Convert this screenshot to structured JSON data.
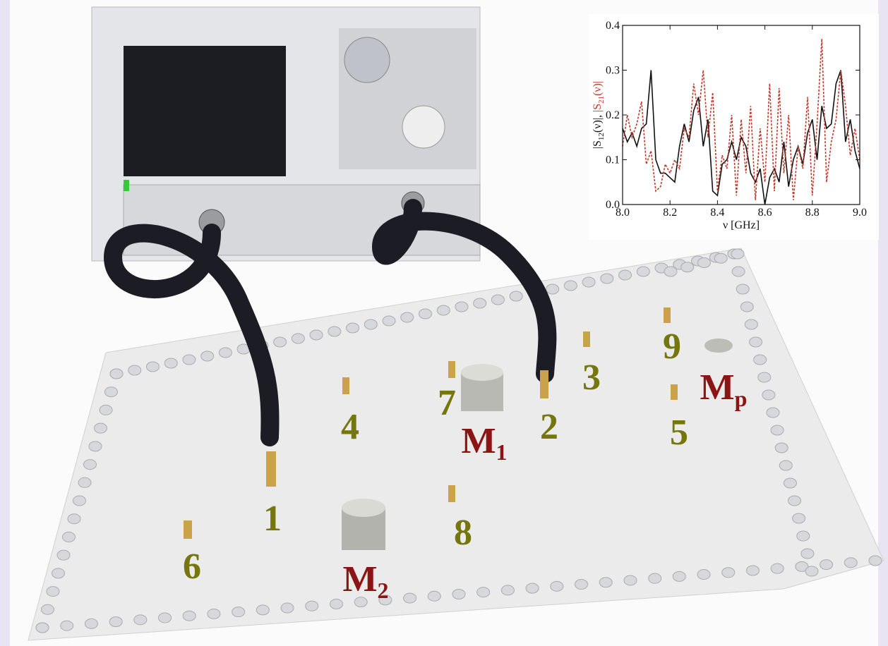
{
  "labels": [
    {
      "text": "1"
    },
    {
      "text": "2"
    },
    {
      "text": "3"
    },
    {
      "text": "4"
    },
    {
      "text": "5"
    },
    {
      "text": "6"
    },
    {
      "text": "7"
    },
    {
      "text": "8"
    },
    {
      "text": "9"
    },
    {
      "text": "M",
      "sub": "1"
    },
    {
      "text": "M",
      "sub": "2"
    },
    {
      "text": "M",
      "sub": "p"
    }
  ],
  "chart_data": {
    "type": "line",
    "xlabel": "ν [GHz]",
    "ylabel_parts": [
      "|S",
      "12",
      "(ν)|, ",
      "|S",
      "21",
      "(ν)|"
    ],
    "x": [
      8.0,
      8.02,
      8.04,
      8.06,
      8.08,
      8.1,
      8.12,
      8.14,
      8.16,
      8.18,
      8.2,
      8.22,
      8.24,
      8.26,
      8.28,
      8.3,
      8.32,
      8.34,
      8.36,
      8.38,
      8.4,
      8.42,
      8.44,
      8.46,
      8.48,
      8.5,
      8.52,
      8.54,
      8.56,
      8.58,
      8.6,
      8.62,
      8.64,
      8.66,
      8.68,
      8.7,
      8.72,
      8.74,
      8.76,
      8.78,
      8.8,
      8.82,
      8.84,
      8.86,
      8.88,
      8.9,
      8.92,
      8.94,
      8.96,
      8.98,
      9.0
    ],
    "series": [
      {
        "color": "#111111",
        "dash": false,
        "values": [
          0.17,
          0.14,
          0.16,
          0.13,
          0.17,
          0.18,
          0.3,
          0.1,
          0.07,
          0.07,
          0.06,
          0.05,
          0.13,
          0.18,
          0.14,
          0.21,
          0.24,
          0.13,
          0.19,
          0.03,
          0.02,
          0.09,
          0.1,
          0.14,
          0.1,
          0.15,
          0.13,
          0.07,
          0.05,
          0.08,
          0.0,
          0.06,
          0.08,
          0.05,
          0.14,
          0.04,
          0.1,
          0.13,
          0.09,
          0.16,
          0.19,
          0.1,
          0.22,
          0.17,
          0.18,
          0.27,
          0.3,
          0.14,
          0.19,
          0.12,
          0.08
        ]
      },
      {
        "color": "#c0392b",
        "dash": true,
        "values": [
          0.13,
          0.2,
          0.15,
          0.18,
          0.23,
          0.09,
          0.12,
          0.03,
          0.04,
          0.09,
          0.07,
          0.1,
          0.08,
          0.17,
          0.15,
          0.27,
          0.2,
          0.3,
          0.15,
          0.25,
          0.03,
          0.11,
          0.08,
          0.2,
          0.02,
          0.19,
          0.07,
          0.22,
          0.01,
          0.17,
          0.05,
          0.27,
          0.03,
          0.26,
          0.07,
          0.2,
          0.01,
          0.13,
          0.08,
          0.24,
          0.02,
          0.18,
          0.37,
          0.05,
          0.14,
          0.19,
          0.3,
          0.22,
          0.11,
          0.17,
          0.1
        ]
      }
    ],
    "xlim": [
      8.0,
      9.0
    ],
    "xticks": [
      {
        "value": 8,
        "label": "8.0"
      },
      8.2,
      8.4,
      8.6,
      8.8,
      {
        "value": 9,
        "label": "9.0"
      }
    ],
    "ylim": [
      0,
      0.4
    ],
    "yticks": [
      {
        "value": 0,
        "label": "0.0"
      },
      0.1,
      0.2,
      0.3,
      0.4
    ]
  }
}
